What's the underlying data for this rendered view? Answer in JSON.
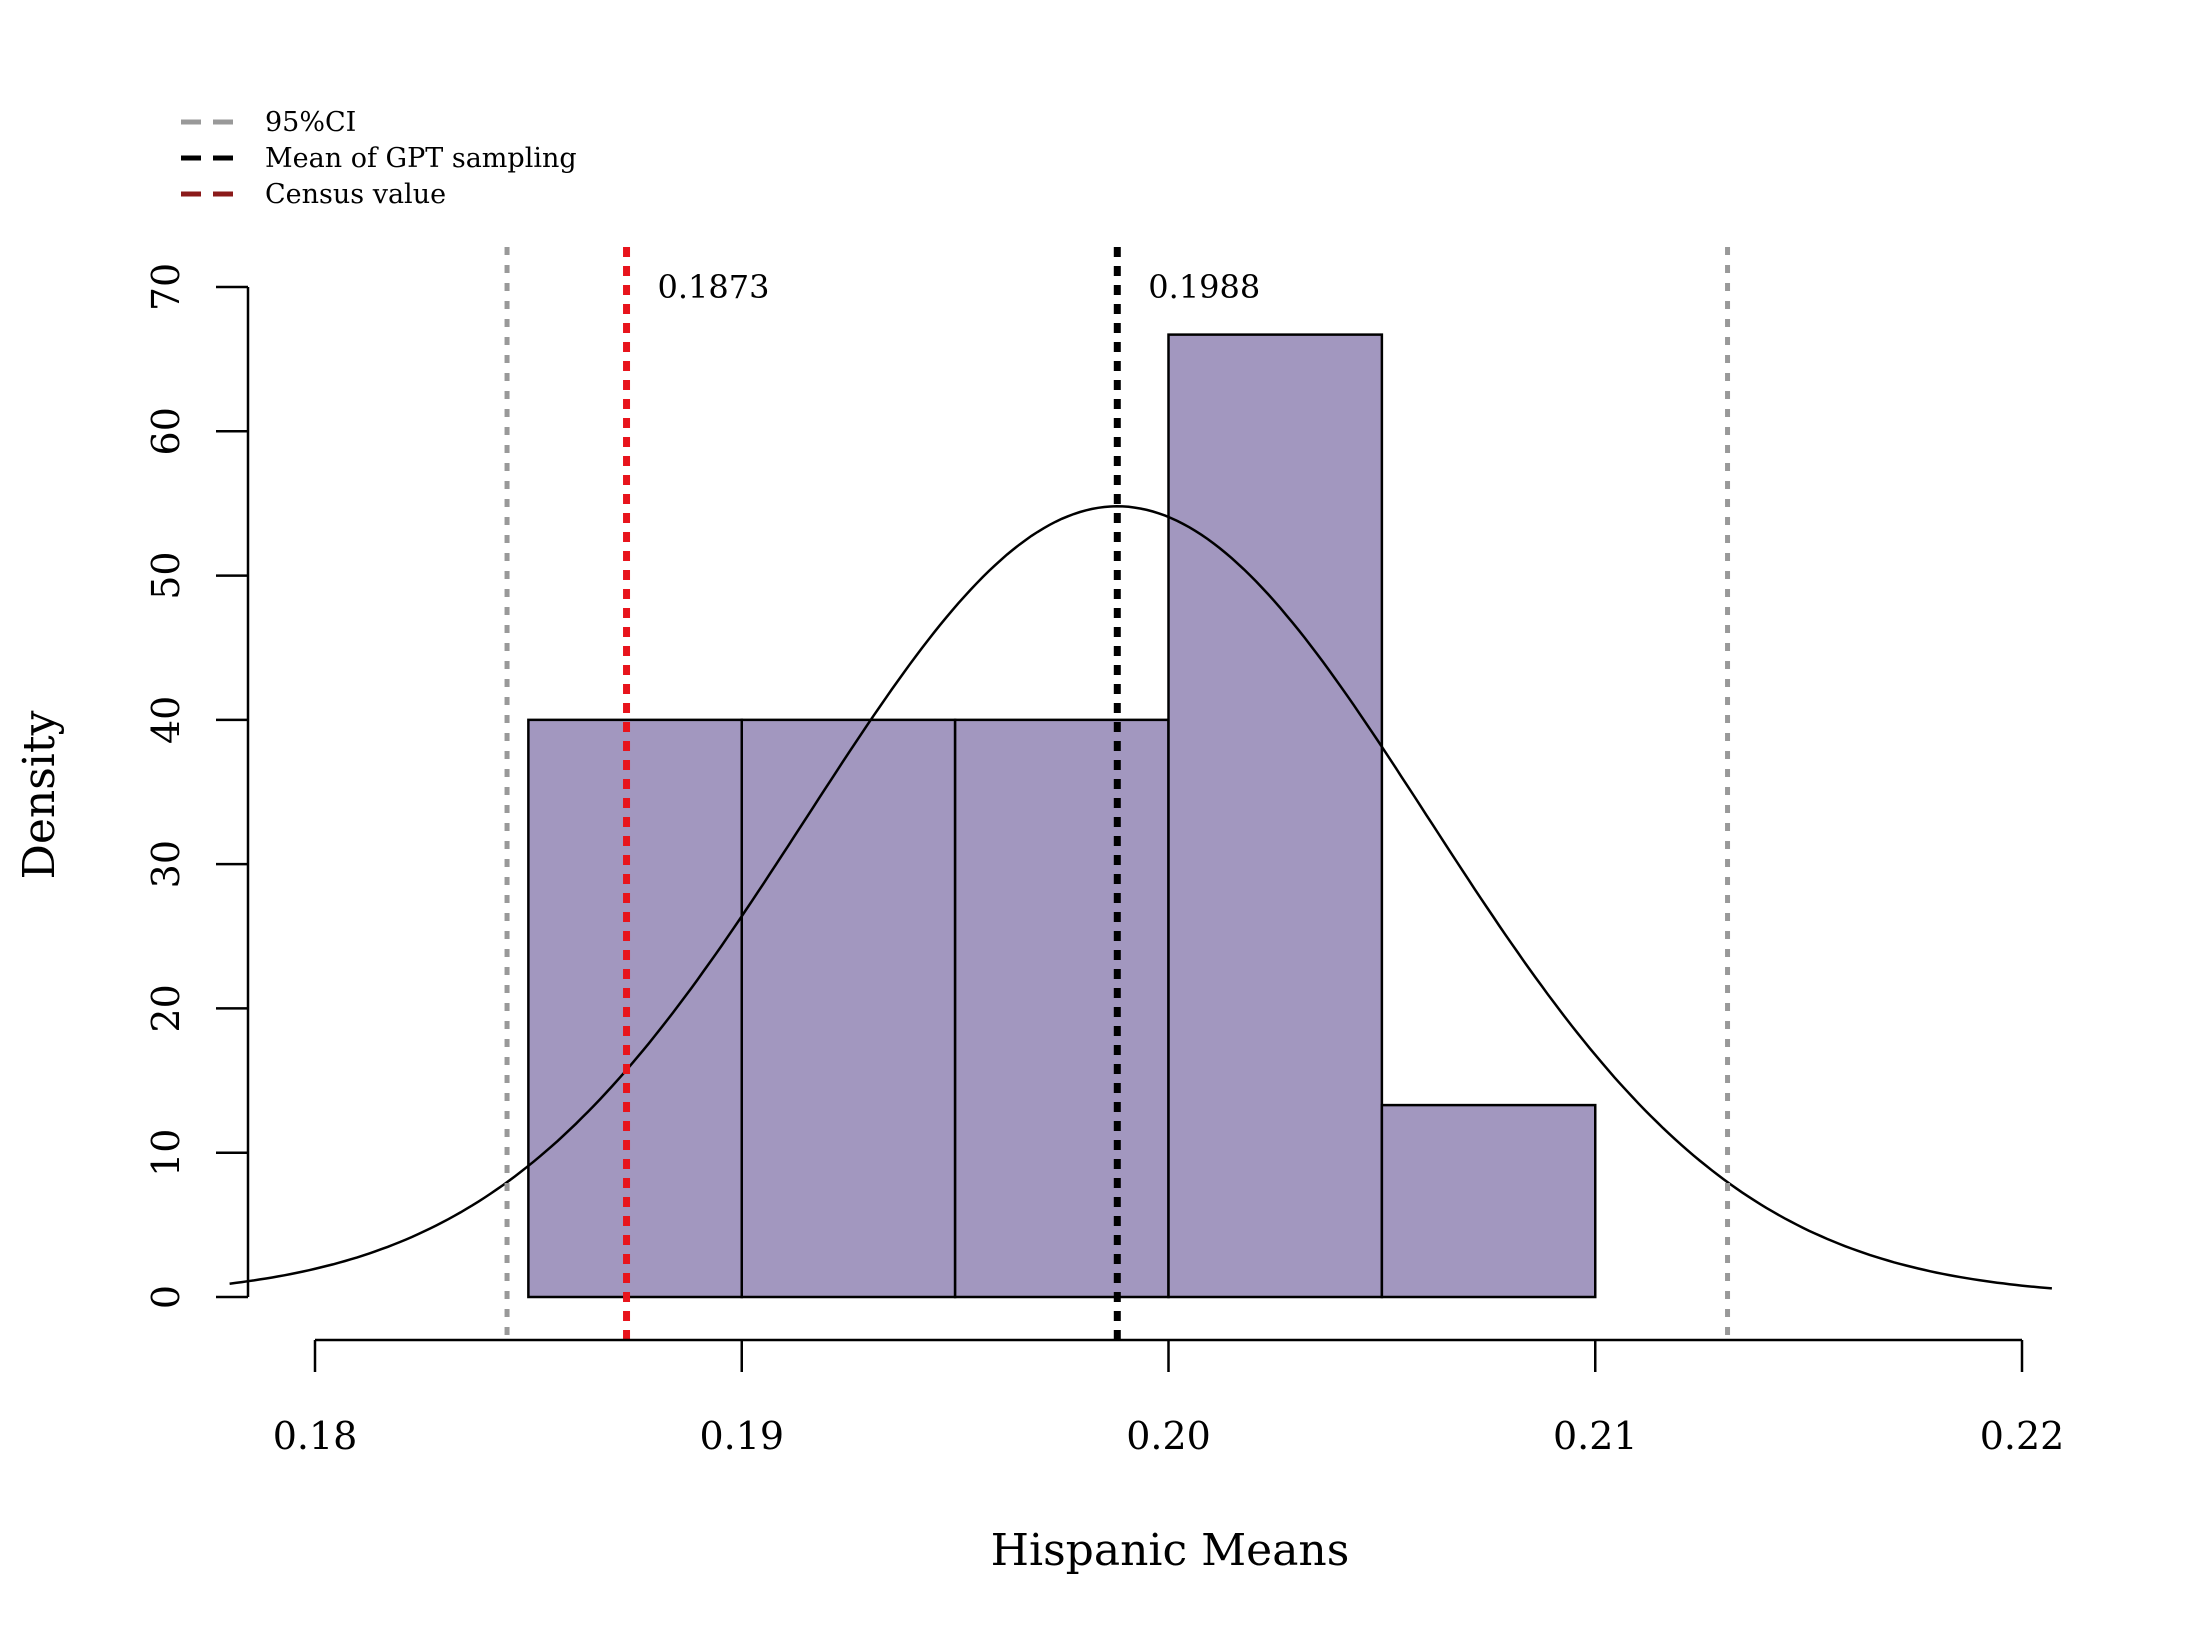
{
  "chart_data": {
    "type": "bar",
    "title": "",
    "xlabel": "Hispanic Means",
    "ylabel": "Density",
    "xlim": [
      0.178,
      0.221
    ],
    "ylim": [
      0,
      70
    ],
    "x_ticks": [
      {
        "value": 0.18,
        "label": "0.18"
      },
      {
        "value": 0.19,
        "label": "0.19"
      },
      {
        "value": 0.2,
        "label": "0.20"
      },
      {
        "value": 0.21,
        "label": "0.21"
      },
      {
        "value": 0.22,
        "label": "0.22"
      }
    ],
    "y_ticks": [
      {
        "value": 0,
        "label": "0"
      },
      {
        "value": 10,
        "label": "10"
      },
      {
        "value": 20,
        "label": "20"
      },
      {
        "value": 30,
        "label": "30"
      },
      {
        "value": 40,
        "label": "40"
      },
      {
        "value": 50,
        "label": "50"
      },
      {
        "value": 60,
        "label": "60"
      },
      {
        "value": 70,
        "label": "70"
      }
    ],
    "bins": [
      {
        "from": 0.185,
        "to": 0.19,
        "density": 40
      },
      {
        "from": 0.19,
        "to": 0.195,
        "density": 40
      },
      {
        "from": 0.195,
        "to": 0.2,
        "density": 40
      },
      {
        "from": 0.2,
        "to": 0.205,
        "density": 66.7
      },
      {
        "from": 0.205,
        "to": 0.21,
        "density": 13.3
      }
    ],
    "bar_color": "#a297bf",
    "density_curve": {
      "type": "normal",
      "mean": 0.1988,
      "sd": 0.00728,
      "color": "#000000",
      "x_range": [
        0.178,
        0.2207
      ]
    },
    "vlines": [
      {
        "name": "ci-lower",
        "value": 0.1845,
        "color": "#999999",
        "series": "95%CI"
      },
      {
        "name": "ci-upper",
        "value": 0.2131,
        "color": "#999999",
        "series": "95%CI"
      },
      {
        "name": "census",
        "value": 0.1873,
        "color": "#e8141c",
        "series": "Census value",
        "label": "0.1873"
      },
      {
        "name": "gpt-mean",
        "value": 0.1988,
        "color": "#000000",
        "series": "Mean of GPT sampling",
        "label": "0.1988"
      }
    ],
    "legend": {
      "position": "top-left",
      "entries": [
        {
          "label": "95%CI",
          "color": "#999999"
        },
        {
          "label": "Mean of GPT sampling",
          "color": "#000000"
        },
        {
          "label": "Census value",
          "color": "#8b1a1a"
        }
      ]
    },
    "grid": false
  }
}
